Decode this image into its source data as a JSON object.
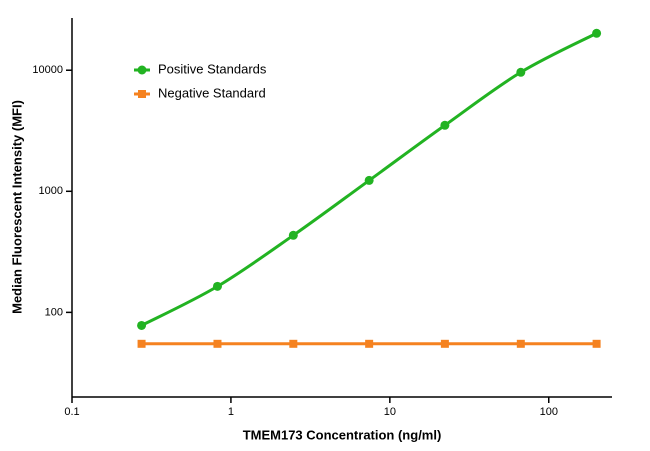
{
  "chart_data": {
    "type": "line",
    "x_label": "TMEM173 Concentration (ng/ml)",
    "y_label": "Median Fluorescent Intensity (MFI)",
    "x_log": true,
    "y_log": true,
    "xlim": [
      0.1,
      250
    ],
    "ylim": [
      20,
      27000
    ],
    "xticks": [
      0.1,
      1,
      10,
      100
    ],
    "yticks": [
      100,
      1000,
      10000
    ],
    "legend": "top-left",
    "series": [
      {
        "name": "Positive Standards",
        "color": "#22b322",
        "marker": "circle",
        "smooth": true,
        "x": [
          0.274,
          0.823,
          2.47,
          7.41,
          22.2,
          66.7,
          200
        ],
        "values": [
          78,
          164,
          433,
          1230,
          3510,
          9620,
          20200
        ]
      },
      {
        "name": "Negative Standard",
        "color": "#f58220",
        "marker": "square",
        "smooth": false,
        "x": [
          0.274,
          0.823,
          2.47,
          7.41,
          22.2,
          66.7,
          200
        ],
        "values": [
          55,
          55,
          55,
          55,
          55,
          55,
          55
        ]
      }
    ]
  }
}
